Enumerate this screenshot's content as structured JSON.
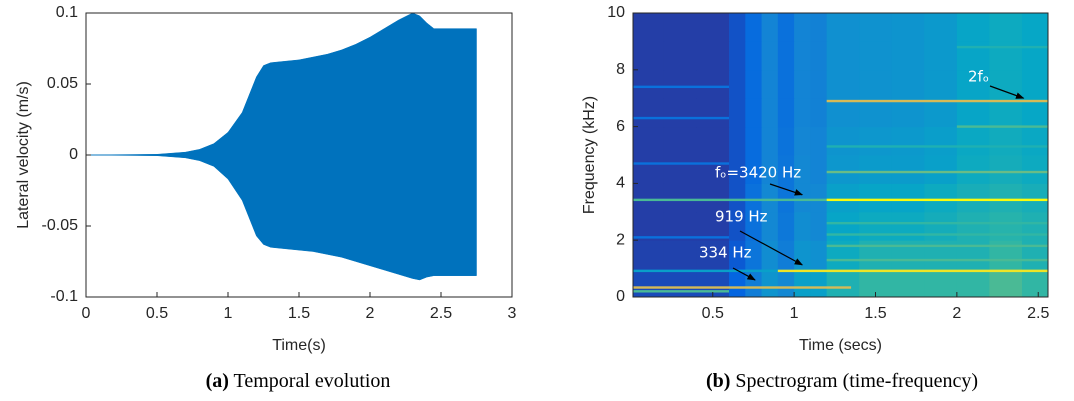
{
  "chart_data": [
    {
      "type": "area",
      "x_label": "Time(s)",
      "y_label": "Lateral velocity (m/s)",
      "caption_label": "(a)",
      "caption": "Temporal evolution",
      "color": "#0072bd",
      "x": [
        0,
        0.5,
        0.7,
        0.8,
        0.9,
        1.0,
        1.1,
        1.2,
        1.25,
        1.3,
        1.4,
        1.5,
        1.6,
        1.7,
        1.8,
        1.9,
        2.0,
        2.1,
        2.2,
        2.3,
        2.35,
        2.4,
        2.45,
        2.5,
        2.75
      ],
      "series": [
        {
          "values": [
            0,
            0.0005,
            0.002,
            0.004,
            0.008,
            0.016,
            0.03,
            0.055,
            0.063,
            0.065,
            0.066,
            0.067,
            0.069,
            0.071,
            0.074,
            0.078,
            0.083,
            0.089,
            0.095,
            0.1,
            0.098,
            0.093,
            0.089,
            0.089,
            0.089
          ]
        },
        {
          "values": [
            0,
            -0.0005,
            -0.002,
            -0.004,
            -0.008,
            -0.017,
            -0.032,
            -0.057,
            -0.063,
            -0.065,
            -0.066,
            -0.067,
            -0.068,
            -0.07,
            -0.072,
            -0.075,
            -0.078,
            -0.081,
            -0.084,
            -0.087,
            -0.088,
            -0.086,
            -0.085,
            -0.085,
            -0.085
          ]
        }
      ],
      "xlim": [
        0,
        3
      ],
      "xticks": [
        0,
        0.5,
        1,
        1.5,
        2,
        2.5,
        3
      ],
      "ylim": [
        -0.1,
        0.1
      ],
      "yticks": [
        -0.1,
        -0.05,
        0,
        0.05,
        0.1
      ]
    },
    {
      "type": "heatmap",
      "x_label": "Time (secs)",
      "y_label": "Frequency (kHz)",
      "caption_label": "(b)",
      "caption": "Spectrogram (time-frequency)",
      "colormap": [
        "#352a87",
        "#0363e1",
        "#1485d4",
        "#06a7c6",
        "#38b99e",
        "#92bf73",
        "#d9ba56",
        "#f9fb0e"
      ],
      "xbins": [
        0.01,
        0.2,
        0.4,
        0.6,
        0.7,
        0.8,
        0.9,
        1.0,
        1.1,
        1.2,
        1.4,
        1.6,
        1.8,
        2.0,
        2.2,
        2.4,
        2.56
      ],
      "ybins": [
        0,
        1,
        2,
        3,
        4,
        5,
        6,
        7,
        8,
        9,
        10
      ],
      "z": [
        [
          0.08,
          0.08,
          0.08,
          0.15,
          0.25,
          0.35,
          0.3,
          0.4,
          0.4,
          0.5,
          0.55,
          0.55,
          0.55,
          0.55,
          0.6,
          0.55
        ],
        [
          0.06,
          0.06,
          0.06,
          0.12,
          0.22,
          0.32,
          0.25,
          0.35,
          0.33,
          0.45,
          0.5,
          0.5,
          0.5,
          0.5,
          0.55,
          0.5
        ],
        [
          0.05,
          0.05,
          0.05,
          0.1,
          0.2,
          0.3,
          0.23,
          0.32,
          0.3,
          0.42,
          0.45,
          0.45,
          0.47,
          0.5,
          0.52,
          0.5
        ],
        [
          0.05,
          0.05,
          0.05,
          0.1,
          0.2,
          0.3,
          0.22,
          0.3,
          0.3,
          0.4,
          0.42,
          0.42,
          0.45,
          0.48,
          0.5,
          0.48
        ],
        [
          0.05,
          0.05,
          0.05,
          0.1,
          0.18,
          0.28,
          0.22,
          0.3,
          0.28,
          0.36,
          0.38,
          0.38,
          0.4,
          0.45,
          0.47,
          0.45
        ],
        [
          0.05,
          0.05,
          0.05,
          0.1,
          0.18,
          0.28,
          0.21,
          0.29,
          0.28,
          0.35,
          0.36,
          0.37,
          0.39,
          0.44,
          0.46,
          0.44
        ],
        [
          0.05,
          0.05,
          0.05,
          0.1,
          0.18,
          0.28,
          0.2,
          0.28,
          0.27,
          0.33,
          0.34,
          0.35,
          0.37,
          0.42,
          0.45,
          0.43
        ],
        [
          0.05,
          0.05,
          0.05,
          0.1,
          0.18,
          0.28,
          0.2,
          0.28,
          0.27,
          0.33,
          0.34,
          0.35,
          0.37,
          0.42,
          0.45,
          0.43
        ],
        [
          0.05,
          0.05,
          0.05,
          0.1,
          0.18,
          0.28,
          0.2,
          0.28,
          0.27,
          0.33,
          0.34,
          0.35,
          0.37,
          0.42,
          0.45,
          0.43
        ],
        [
          0.05,
          0.05,
          0.05,
          0.1,
          0.18,
          0.28,
          0.2,
          0.28,
          0.27,
          0.33,
          0.34,
          0.35,
          0.37,
          0.42,
          0.45,
          0.43
        ]
      ],
      "lines": [
        {
          "y": 0.2,
          "x0": 0.01,
          "x1": 0.6,
          "z": 0.6
        },
        {
          "y": 0.334,
          "x0": 0.01,
          "x1": 1.35,
          "z": 0.85
        },
        {
          "y": 0.919,
          "x0": 0.01,
          "x1": 0.9,
          "z": 0.4
        },
        {
          "y": 0.919,
          "x0": 0.9,
          "x1": 2.56,
          "z": 0.95
        },
        {
          "y": 1.3,
          "x0": 1.2,
          "x1": 2.56,
          "z": 0.6
        },
        {
          "y": 1.8,
          "x0": 1.2,
          "x1": 2.56,
          "z": 0.6
        },
        {
          "y": 2.1,
          "x0": 0.01,
          "x1": 0.6,
          "z": 0.2
        },
        {
          "y": 2.2,
          "x0": 1.2,
          "x1": 2.56,
          "z": 0.55
        },
        {
          "y": 2.6,
          "x0": 1.2,
          "x1": 2.56,
          "z": 0.55
        },
        {
          "y": 3.42,
          "x0": 0.01,
          "x1": 1.2,
          "z": 0.6
        },
        {
          "y": 3.42,
          "x0": 1.2,
          "x1": 2.56,
          "z": 1.0
        },
        {
          "y": 4.4,
          "x0": 1.2,
          "x1": 2.56,
          "z": 0.65
        },
        {
          "y": 4.7,
          "x0": 0.01,
          "x1": 0.6,
          "z": 0.2
        },
        {
          "y": 5.3,
          "x0": 1.2,
          "x1": 2.56,
          "z": 0.5
        },
        {
          "y": 6.0,
          "x0": 2.0,
          "x1": 2.56,
          "z": 0.6
        },
        {
          "y": 6.3,
          "x0": 0.01,
          "x1": 0.6,
          "z": 0.2
        },
        {
          "y": 6.9,
          "x0": 1.2,
          "x1": 2.56,
          "z": 0.85
        },
        {
          "y": 7.4,
          "x0": 0.01,
          "x1": 0.6,
          "z": 0.2
        },
        {
          "y": 8.8,
          "x0": 2.0,
          "x1": 2.56,
          "z": 0.5
        }
      ],
      "annotations": [
        {
          "text": "2fₒ",
          "x": 2.41,
          "y": 7.0
        },
        {
          "text": "fₒ=3420 Hz",
          "x": 1.05,
          "y": 3.6
        },
        {
          "text": "919 Hz",
          "x": 1.05,
          "y": 1.13
        },
        {
          "text": "334 Hz",
          "x": 0.76,
          "y": 0.6
        }
      ],
      "xlim": [
        0.01,
        2.56
      ],
      "xticks": [
        0.5,
        1,
        1.5,
        2,
        2.5
      ],
      "ylim": [
        0,
        10
      ],
      "yticks": [
        0,
        2,
        4,
        6,
        8,
        10
      ]
    }
  ]
}
